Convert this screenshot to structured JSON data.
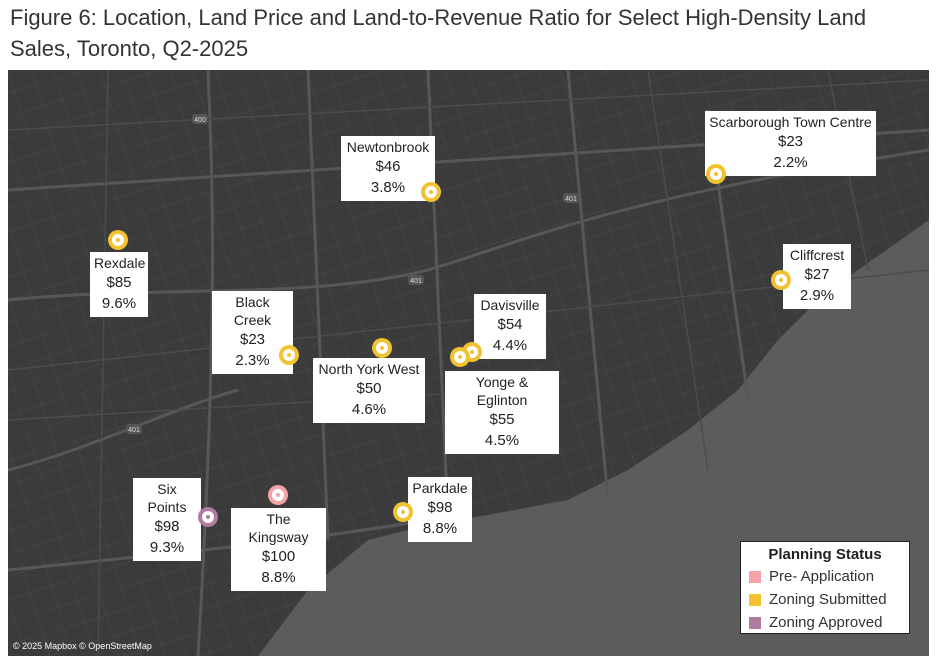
{
  "title": "Figure 6: Location, Land Price and Land-to-Revenue Ratio for Select High-Density Land Sales, Toronto, Q2-2025",
  "colors": {
    "map_land": "#3b3b3b",
    "map_water": "#5c5c5c",
    "road": "#555555",
    "pre_application": "#f4a3a8",
    "zoning_submitted": "#f1c232",
    "zoning_approved": "#b07aa1"
  },
  "highway_shields": [
    "400",
    "401",
    "401",
    "401"
  ],
  "sites": [
    {
      "name": "Newtonbrook",
      "price": "$46",
      "ratio": "3.8%",
      "status": "zoning_submitted"
    },
    {
      "name": "Scarborough Town Centre",
      "price": "$23",
      "ratio": "2.2%",
      "status": "zoning_submitted"
    },
    {
      "name": "Rexdale",
      "price": "$85",
      "ratio": "9.6%",
      "status": "zoning_submitted"
    },
    {
      "name": "Cliffcrest",
      "price": "$27",
      "ratio": "2.9%",
      "status": "zoning_submitted"
    },
    {
      "name": "Black Creek",
      "price": "$23",
      "ratio": "2.3%",
      "status": "zoning_submitted"
    },
    {
      "name": "Davisville",
      "price": "$54",
      "ratio": "4.4%",
      "status": "zoning_submitted"
    },
    {
      "name": "North York West",
      "price": "$50",
      "ratio": "4.6%",
      "status": "zoning_submitted"
    },
    {
      "name": "Yonge & Eglinton",
      "price": "$55",
      "ratio": "4.5%",
      "status": "zoning_submitted"
    },
    {
      "name": "Six Points",
      "price": "$98",
      "ratio": "9.3%",
      "status": "zoning_approved"
    },
    {
      "name": "The Kingsway",
      "price": "$100",
      "ratio": "8.8%",
      "status": "pre_application"
    },
    {
      "name": "Parkdale",
      "price": "$98",
      "ratio": "8.8%",
      "status": "zoning_submitted"
    }
  ],
  "legend": {
    "title": "Planning Status",
    "items": [
      {
        "label": "Pre- Application",
        "status": "pre_application"
      },
      {
        "label": "Zoning Submitted",
        "status": "zoning_submitted"
      },
      {
        "label": "Zoning Approved",
        "status": "zoning_approved"
      }
    ]
  },
  "credit": "© 2025 Mapbox © OpenStreetMap"
}
